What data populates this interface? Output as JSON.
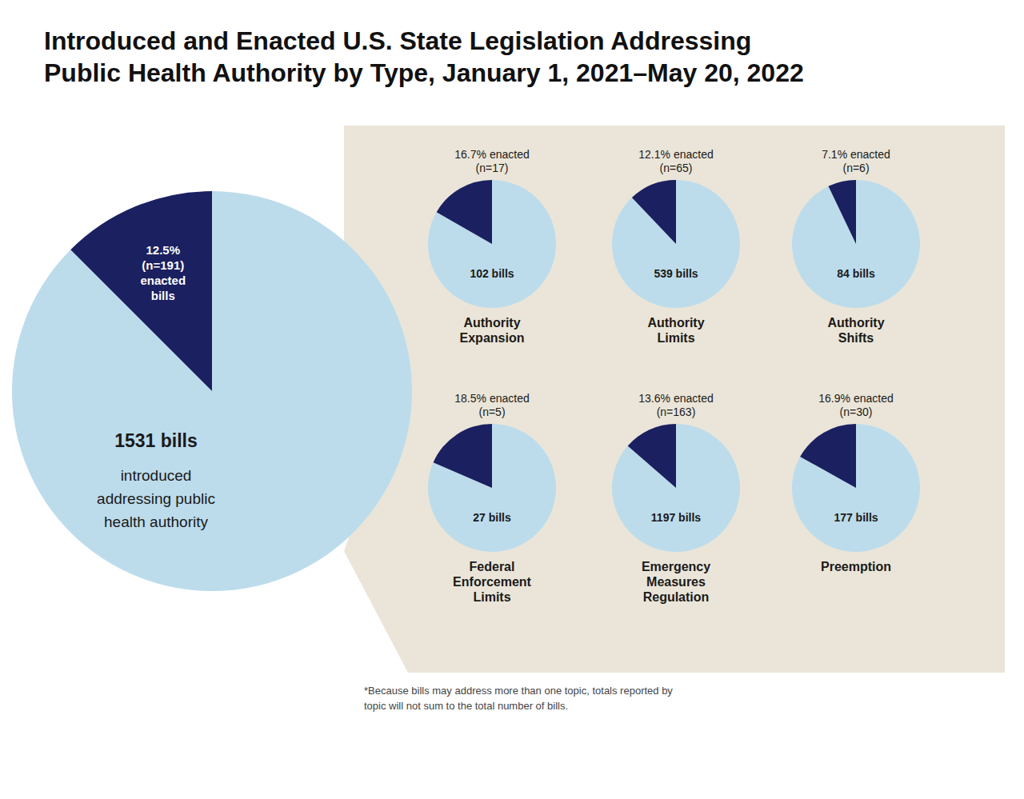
{
  "chart_data": [
    {
      "type": "pie",
      "title": "Introduced and Enacted U.S. State Legislation Addressing\nPublic Health Authority by Type, January 1, 2021–May 20, 2022",
      "values": [
        87.5,
        12.5
      ],
      "colors": [
        "#bcdcec",
        "#1b2060"
      ],
      "annotations": [
        "12.5%\n(n=191)\nenacted\nbills",
        "1531 bills",
        "introduced\naddressing public\nhealth authority",
        "*Because bills may address more than one topic, totals reported by\ntopic will not sum to the total number of bills."
      ]
    },
    {
      "type": "pie",
      "title": "Authority\nExpansion",
      "values": [
        83.3,
        16.7
      ],
      "colors": [
        "#bcdcec",
        "#1b2060"
      ],
      "annotations": [
        "16.7% enacted\n(n=17)",
        "102 bills"
      ]
    },
    {
      "type": "pie",
      "title": "Authority\nLimits",
      "values": [
        87.9,
        12.1
      ],
      "colors": [
        "#bcdcec",
        "#1b2060"
      ],
      "annotations": [
        "12.1% enacted\n(n=65)",
        "539 bills"
      ]
    },
    {
      "type": "pie",
      "title": "Authority\nShifts",
      "values": [
        92.9,
        7.1
      ],
      "colors": [
        "#bcdcec",
        "#1b2060"
      ],
      "annotations": [
        "7.1% enacted\n(n=6)",
        "84 bills"
      ]
    },
    {
      "type": "pie",
      "title": "Federal\nEnforcement\nLimits",
      "values": [
        81.5,
        18.5
      ],
      "colors": [
        "#bcdcec",
        "#1b2060"
      ],
      "annotations": [
        "18.5% enacted\n(n=5)",
        "27 bills"
      ]
    },
    {
      "type": "pie",
      "title": "Emergency\nMeasures\nRegulation",
      "values": [
        86.4,
        13.6
      ],
      "colors": [
        "#bcdcec",
        "#1b2060"
      ],
      "annotations": [
        "13.6% enacted\n(n=163)",
        "1197 bills"
      ]
    },
    {
      "type": "pie",
      "title": "Preemption",
      "values": [
        83.1,
        16.9
      ],
      "colors": [
        "#bcdcec",
        "#1b2060"
      ],
      "annotations": [
        "16.9% enacted\n(n=30)",
        "177 bills"
      ]
    }
  ]
}
